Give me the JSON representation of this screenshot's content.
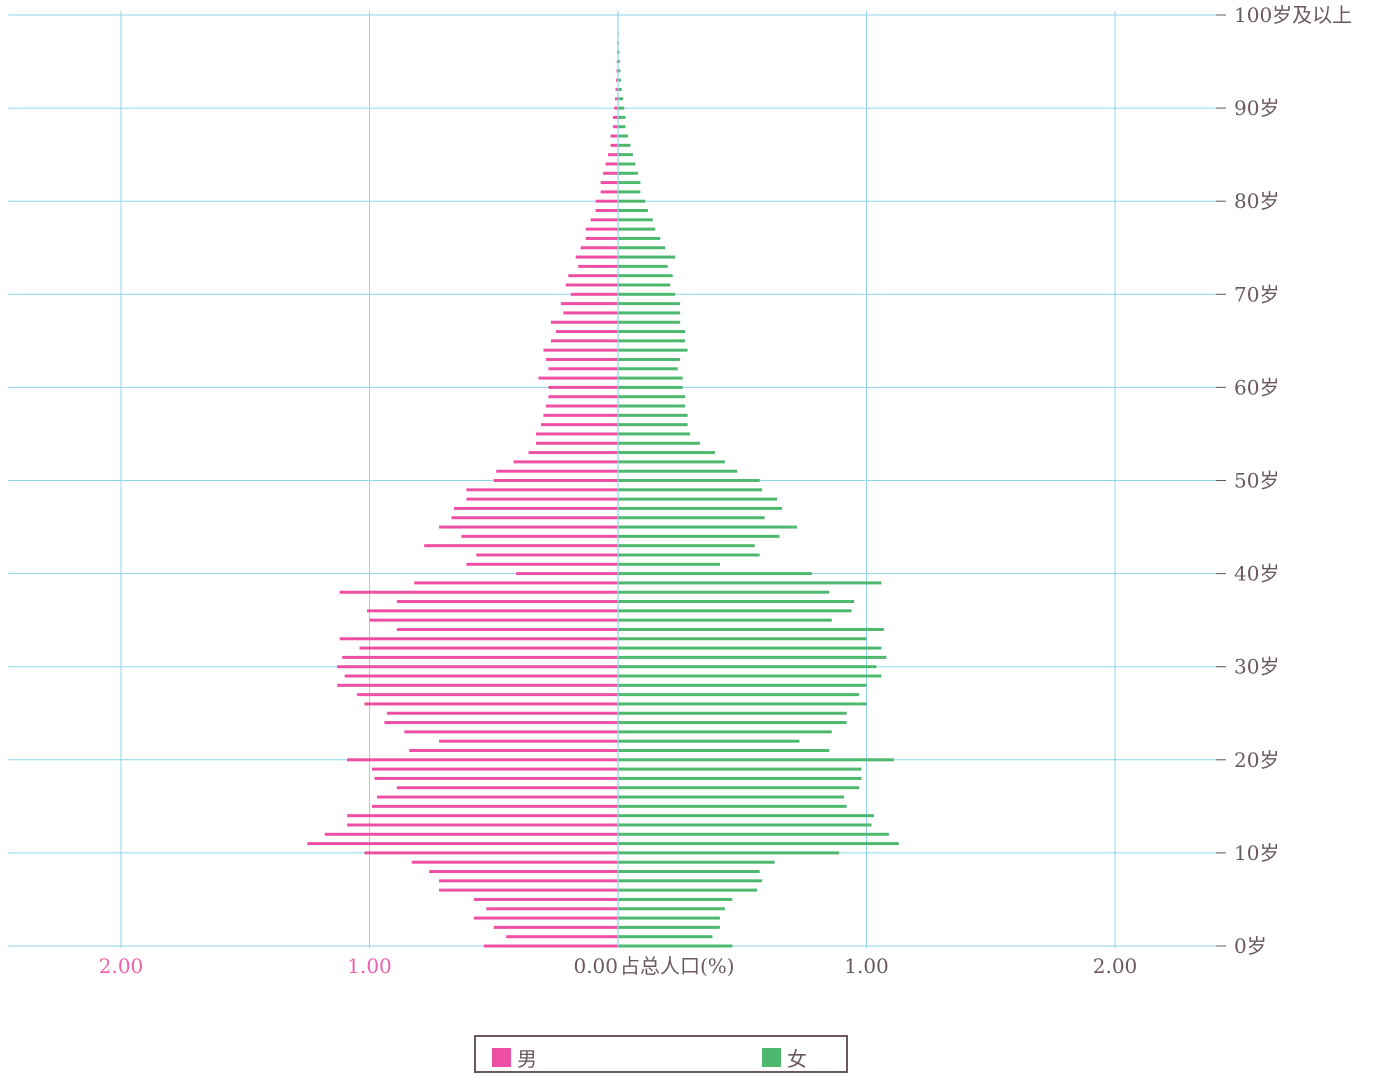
{
  "chart_data": {
    "type": "bar",
    "orientation": "horizontal",
    "title": "",
    "xlabel": "占总人口(%)",
    "ylabel": "",
    "xlim": [
      -2.4,
      2.4
    ],
    "x_ticks": [
      {
        "value": -2,
        "label": "2.00"
      },
      {
        "value": -1,
        "label": "1.00"
      },
      {
        "value": 0,
        "label": "0.00"
      },
      {
        "value": 1,
        "label": "1.00"
      },
      {
        "value": 2,
        "label": "2.00"
      }
    ],
    "y_ticks": [
      {
        "age": 0,
        "label": "0岁"
      },
      {
        "age": 10,
        "label": "10岁"
      },
      {
        "age": 20,
        "label": "20岁"
      },
      {
        "age": 30,
        "label": "30岁"
      },
      {
        "age": 40,
        "label": "40岁"
      },
      {
        "age": 50,
        "label": "50岁"
      },
      {
        "age": 60,
        "label": "60岁"
      },
      {
        "age": 70,
        "label": "70岁"
      },
      {
        "age": 80,
        "label": "80岁"
      },
      {
        "age": 90,
        "label": "90岁"
      },
      {
        "age": 100,
        "label": "100岁及以上"
      }
    ],
    "ages": [
      0,
      1,
      2,
      3,
      4,
      5,
      6,
      7,
      8,
      9,
      10,
      11,
      12,
      13,
      14,
      15,
      16,
      17,
      18,
      19,
      20,
      21,
      22,
      23,
      24,
      25,
      26,
      27,
      28,
      29,
      30,
      31,
      32,
      33,
      34,
      35,
      36,
      37,
      38,
      39,
      40,
      41,
      42,
      43,
      44,
      45,
      46,
      47,
      48,
      49,
      50,
      51,
      52,
      53,
      54,
      55,
      56,
      57,
      58,
      59,
      60,
      61,
      62,
      63,
      64,
      65,
      66,
      67,
      68,
      69,
      70,
      71,
      72,
      73,
      74,
      75,
      76,
      77,
      78,
      79,
      80,
      81,
      82,
      83,
      84,
      85,
      86,
      87,
      88,
      89,
      90,
      91,
      92,
      93,
      94,
      95,
      96,
      97,
      98,
      99,
      100
    ],
    "series": [
      {
        "name": "男",
        "color": "#ee4fa4",
        "values": [
          0.54,
          0.45,
          0.5,
          0.58,
          0.53,
          0.58,
          0.72,
          0.72,
          0.76,
          0.83,
          1.02,
          1.25,
          1.18,
          1.09,
          1.09,
          0.99,
          0.97,
          0.89,
          0.98,
          0.99,
          1.09,
          0.84,
          0.72,
          0.86,
          0.94,
          0.93,
          1.02,
          1.05,
          1.13,
          1.1,
          1.13,
          1.11,
          1.04,
          1.12,
          0.89,
          1.0,
          1.01,
          0.89,
          1.12,
          0.82,
          0.41,
          0.61,
          0.57,
          0.78,
          0.63,
          0.72,
          0.67,
          0.66,
          0.61,
          0.61,
          0.5,
          0.49,
          0.42,
          0.36,
          0.33,
          0.33,
          0.31,
          0.3,
          0.29,
          0.28,
          0.28,
          0.32,
          0.28,
          0.29,
          0.3,
          0.27,
          0.25,
          0.27,
          0.22,
          0.23,
          0.19,
          0.21,
          0.2,
          0.16,
          0.17,
          0.15,
          0.13,
          0.13,
          0.11,
          0.09,
          0.09,
          0.07,
          0.07,
          0.06,
          0.05,
          0.04,
          0.03,
          0.03,
          0.02,
          0.02,
          0.015,
          0.012,
          0.01,
          0.008,
          0.006,
          0.005,
          0.004,
          0.003,
          0.002,
          0.001,
          0.001
        ]
      },
      {
        "name": "女",
        "color": "#4db86e",
        "values": [
          0.46,
          0.38,
          0.41,
          0.41,
          0.43,
          0.46,
          0.56,
          0.58,
          0.57,
          0.63,
          0.89,
          1.13,
          1.09,
          1.02,
          1.03,
          0.92,
          0.91,
          0.97,
          0.98,
          0.98,
          1.11,
          0.85,
          0.73,
          0.86,
          0.92,
          0.92,
          1.0,
          0.97,
          1.0,
          1.06,
          1.04,
          1.08,
          1.06,
          1.0,
          1.07,
          0.86,
          0.94,
          0.95,
          0.85,
          1.06,
          0.78,
          0.41,
          0.57,
          0.55,
          0.65,
          0.72,
          0.59,
          0.66,
          0.64,
          0.58,
          0.57,
          0.48,
          0.43,
          0.39,
          0.33,
          0.29,
          0.28,
          0.28,
          0.27,
          0.27,
          0.26,
          0.26,
          0.24,
          0.25,
          0.28,
          0.27,
          0.27,
          0.25,
          0.25,
          0.25,
          0.23,
          0.21,
          0.22,
          0.2,
          0.23,
          0.19,
          0.17,
          0.15,
          0.14,
          0.12,
          0.11,
          0.09,
          0.09,
          0.08,
          0.07,
          0.06,
          0.05,
          0.04,
          0.03,
          0.03,
          0.025,
          0.02,
          0.015,
          0.012,
          0.01,
          0.008,
          0.006,
          0.004,
          0.003,
          0.002,
          0.001
        ]
      }
    ],
    "grid": true,
    "legend": "bottom"
  },
  "legend_items": [
    "男",
    "女"
  ]
}
